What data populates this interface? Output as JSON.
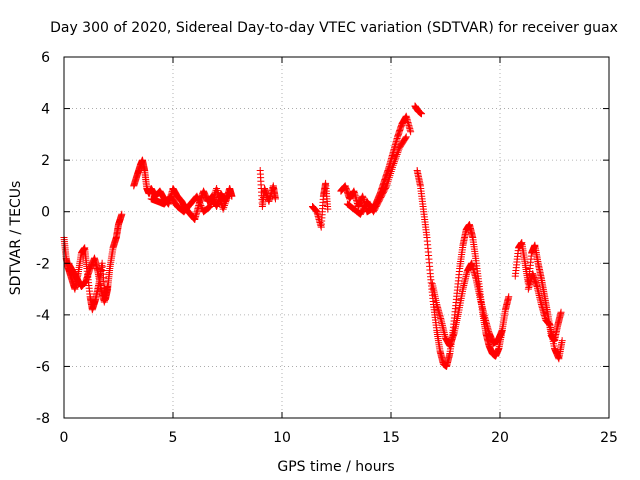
{
  "chart_data": {
    "type": "scatter",
    "title": "Day 300 of 2020, Sidereal Day-to-day VTEC variation (SDTVAR) for receiver guax",
    "xlabel": "GPS time / hours",
    "ylabel": "SDTVAR / TECUs",
    "xlim": [
      0,
      25
    ],
    "ylim": [
      -8,
      6
    ],
    "xticks": [
      0,
      5,
      10,
      15,
      20,
      25
    ],
    "yticks": [
      -8,
      -6,
      -4,
      -2,
      0,
      2,
      4,
      6
    ],
    "xtick_labels": [
      "0",
      "5",
      "10",
      "15",
      "20",
      "25"
    ],
    "ytick_labels": [
      "-8",
      "-6",
      "-4",
      "-2",
      "0",
      "2",
      "4",
      "6"
    ],
    "grid": true,
    "marker": "+",
    "color": "#ff0000",
    "series": [
      {
        "name": "SDTVAR",
        "segments": [
          {
            "x": [
              0.0,
              0.1,
              0.2,
              0.35,
              0.5,
              0.65,
              0.8,
              0.95,
              1.05,
              1.2,
              1.3,
              1.45,
              1.6,
              1.75,
              1.9,
              2.0,
              2.1,
              2.25,
              2.4,
              2.5,
              2.65
            ],
            "y": [
              -1.0,
              -1.8,
              -2.2,
              -2.6,
              -3.0,
              -2.4,
              -1.6,
              -1.4,
              -2.2,
              -3.3,
              -3.8,
              -3.4,
              -2.8,
              -2.0,
              -3.4,
              -3.0,
              -2.2,
              -1.4,
              -1.0,
              -0.5,
              -0.1
            ]
          },
          {
            "x": [
              0.2,
              0.4,
              0.6,
              0.8,
              1.0,
              1.2,
              1.4,
              1.55,
              1.7,
              1.85,
              2.0
            ],
            "y": [
              -2.0,
              -2.3,
              -2.6,
              -2.9,
              -2.7,
              -2.2,
              -1.8,
              -2.3,
              -3.0,
              -3.5,
              -2.9
            ]
          },
          {
            "x": [
              3.2,
              3.35,
              3.5,
              3.6,
              3.7,
              3.8,
              3.9,
              4.0,
              4.2,
              4.4,
              4.6,
              4.8,
              5.0,
              5.2,
              5.4,
              5.6,
              5.8,
              6.0,
              6.2,
              6.4,
              6.6,
              6.8,
              7.0,
              7.2,
              7.4,
              7.6,
              7.7
            ],
            "y": [
              1.0,
              1.4,
              1.8,
              2.0,
              1.6,
              0.9,
              0.7,
              0.9,
              0.6,
              0.8,
              0.5,
              0.3,
              0.9,
              0.6,
              0.4,
              0.1,
              -0.1,
              -0.3,
              0.3,
              0.8,
              0.4,
              0.6,
              0.2,
              0.7,
              0.4,
              0.9,
              0.6
            ]
          },
          {
            "x": [
              4.0,
              4.3,
              4.6,
              4.9,
              5.2,
              5.5,
              5.8,
              6.1,
              6.4,
              6.7,
              7.0,
              7.3,
              7.6
            ],
            "y": [
              0.5,
              0.4,
              0.3,
              0.6,
              0.2,
              0.0,
              0.3,
              0.6,
              0.0,
              0.2,
              0.9,
              0.1,
              0.8
            ]
          },
          {
            "x": [
              9.0,
              9.1,
              9.2,
              9.4,
              9.6,
              9.7
            ],
            "y": [
              1.6,
              0.2,
              0.9,
              0.4,
              1.0,
              0.5
            ]
          },
          {
            "x": [
              11.4,
              11.6,
              11.8,
              11.9,
              12.0,
              12.1
            ],
            "y": [
              0.2,
              0.0,
              -0.6,
              0.6,
              1.1,
              0.1
            ]
          },
          {
            "x": [
              12.7,
              12.9,
              13.1,
              13.3,
              13.5,
              13.7,
              13.9,
              14.1,
              14.3,
              14.5,
              14.7,
              14.9,
              15.1,
              15.3,
              15.5,
              15.7,
              15.9
            ],
            "y": [
              0.8,
              1.0,
              0.5,
              0.8,
              0.2,
              0.6,
              0.0,
              0.1,
              0.3,
              0.7,
              1.2,
              1.7,
              2.3,
              2.9,
              3.4,
              3.7,
              3.1
            ]
          },
          {
            "x": [
              13.0,
              13.3,
              13.6,
              13.9,
              14.2,
              14.5,
              14.8,
              15.1,
              15.4,
              15.7
            ],
            "y": [
              0.3,
              0.1,
              -0.1,
              0.4,
              0.0,
              0.5,
              1.0,
              1.8,
              2.5,
              2.9
            ]
          },
          {
            "x": [
              16.1,
              16.25,
              16.4
            ],
            "y": [
              4.1,
              3.9,
              3.8
            ]
          },
          {
            "x": [
              16.2,
              16.35,
              16.5,
              16.65,
              16.8,
              16.95,
              17.1,
              17.25,
              17.4,
              17.55,
              17.7,
              17.85,
              18.0,
              18.15,
              18.3,
              18.45,
              18.6,
              18.75,
              18.9,
              19.05,
              19.2,
              19.35,
              19.5,
              19.65,
              19.8,
              19.95,
              20.1,
              20.25,
              20.4
            ],
            "y": [
              1.6,
              1.0,
              0.0,
              -1.0,
              -2.4,
              -3.6,
              -4.6,
              -5.4,
              -5.9,
              -6.0,
              -5.5,
              -4.6,
              -3.4,
              -2.2,
              -1.3,
              -0.7,
              -0.5,
              -1.0,
              -1.9,
              -2.9,
              -3.9,
              -4.7,
              -5.2,
              -5.5,
              -5.6,
              -5.3,
              -4.6,
              -3.8,
              -3.3
            ]
          },
          {
            "x": [
              16.9,
              17.1,
              17.3,
              17.5,
              17.7,
              17.9,
              18.1,
              18.3,
              18.5,
              18.7,
              18.9,
              19.1,
              19.3,
              19.5,
              19.7,
              19.9,
              20.1
            ],
            "y": [
              -2.8,
              -3.6,
              -4.2,
              -4.9,
              -5.2,
              -4.7,
              -3.9,
              -3.0,
              -2.3,
              -2.0,
              -2.6,
              -3.4,
              -4.1,
              -4.7,
              -5.1,
              -5.0,
              -4.6
            ]
          },
          {
            "x": [
              20.7,
              20.85,
              21.0,
              21.15,
              21.3,
              21.45,
              21.6,
              21.75,
              21.9,
              22.05,
              22.2,
              22.35,
              22.5,
              22.65,
              22.8
            ],
            "y": [
              -2.5,
              -1.4,
              -1.2,
              -2.0,
              -2.8,
              -1.6,
              -1.3,
              -2.0,
              -2.6,
              -3.3,
              -4.0,
              -4.8,
              -5.0,
              -4.4,
              -3.9
            ]
          },
          {
            "x": [
              21.3,
              21.5,
              21.7,
              21.9,
              22.1,
              22.3,
              22.5,
              22.7,
              22.85
            ],
            "y": [
              -3.0,
              -2.4,
              -2.9,
              -3.6,
              -4.2,
              -4.4,
              -5.3,
              -5.7,
              -5.0
            ]
          }
        ]
      }
    ]
  }
}
